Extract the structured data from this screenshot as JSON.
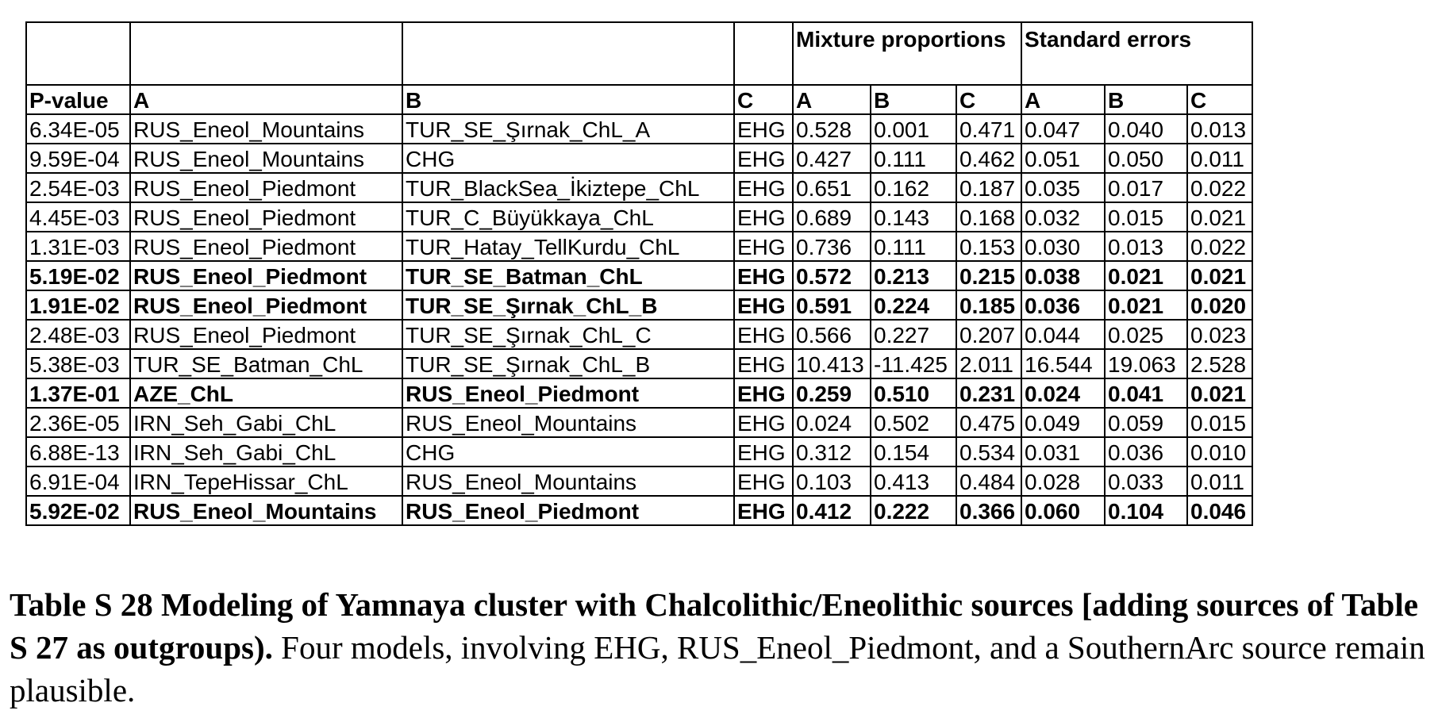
{
  "table": {
    "group_headers": {
      "mixture": "Mixture proportions",
      "standard_errors": "Standard errors"
    },
    "column_headers": [
      "P-value",
      "A",
      "B",
      "C",
      "A",
      "B",
      "C",
      "A",
      "B",
      "C"
    ],
    "rows": [
      {
        "bold": false,
        "cells": [
          "6.34E-05",
          "RUS_Eneol_Mountains",
          "TUR_SE_Şırnak_ChL_A",
          "EHG",
          "0.528",
          "0.001",
          "0.471",
          "0.047",
          "0.040",
          "0.013"
        ]
      },
      {
        "bold": false,
        "cells": [
          "9.59E-04",
          "RUS_Eneol_Mountains",
          "CHG",
          "EHG",
          "0.427",
          "0.111",
          "0.462",
          "0.051",
          "0.050",
          "0.011"
        ]
      },
      {
        "bold": false,
        "cells": [
          "2.54E-03",
          "RUS_Eneol_Piedmont",
          "TUR_BlackSea_İkiztepe_ChL",
          "EHG",
          "0.651",
          "0.162",
          "0.187",
          "0.035",
          "0.017",
          "0.022"
        ]
      },
      {
        "bold": false,
        "cells": [
          "4.45E-03",
          "RUS_Eneol_Piedmont",
          "TUR_C_Büyükkaya_ChL",
          "EHG",
          "0.689",
          "0.143",
          "0.168",
          "0.032",
          "0.015",
          "0.021"
        ]
      },
      {
        "bold": false,
        "cells": [
          "1.31E-03",
          "RUS_Eneol_Piedmont",
          "TUR_Hatay_TellKurdu_ChL",
          "EHG",
          "0.736",
          "0.111",
          "0.153",
          "0.030",
          "0.013",
          "0.022"
        ]
      },
      {
        "bold": true,
        "cells": [
          "5.19E-02",
          "RUS_Eneol_Piedmont",
          "TUR_SE_Batman_ChL",
          "EHG",
          "0.572",
          "0.213",
          "0.215",
          "0.038",
          "0.021",
          "0.021"
        ]
      },
      {
        "bold": true,
        "cells": [
          "1.91E-02",
          "RUS_Eneol_Piedmont",
          "TUR_SE_Şırnak_ChL_B",
          "EHG",
          "0.591",
          "0.224",
          "0.185",
          "0.036",
          "0.021",
          "0.020"
        ]
      },
      {
        "bold": false,
        "cells": [
          "2.48E-03",
          "RUS_Eneol_Piedmont",
          "TUR_SE_Şırnak_ChL_C",
          "EHG",
          "0.566",
          "0.227",
          "0.207",
          "0.044",
          "0.025",
          "0.023"
        ]
      },
      {
        "bold": false,
        "cells": [
          "5.38E-03",
          "TUR_SE_Batman_ChL",
          "TUR_SE_Şırnak_ChL_B",
          "EHG",
          "10.413",
          "-11.425",
          "2.011",
          "16.544",
          "19.063",
          "2.528"
        ]
      },
      {
        "bold": true,
        "cells": [
          "1.37E-01",
          "AZE_ChL",
          "RUS_Eneol_Piedmont",
          "EHG",
          "0.259",
          "0.510",
          "0.231",
          "0.024",
          "0.041",
          "0.021"
        ]
      },
      {
        "bold": false,
        "cells": [
          "2.36E-05",
          "IRN_Seh_Gabi_ChL",
          "RUS_Eneol_Mountains",
          "EHG",
          "0.024",
          "0.502",
          "0.475",
          "0.049",
          "0.059",
          "0.015"
        ]
      },
      {
        "bold": false,
        "cells": [
          "6.88E-13",
          "IRN_Seh_Gabi_ChL",
          "CHG",
          "EHG",
          "0.312",
          "0.154",
          "0.534",
          "0.031",
          "0.036",
          "0.010"
        ]
      },
      {
        "bold": false,
        "cells": [
          "6.91E-04",
          "IRN_TepeHissar_ChL",
          "RUS_Eneol_Mountains",
          "EHG",
          "0.103",
          "0.413",
          "0.484",
          "0.028",
          "0.033",
          "0.011"
        ]
      },
      {
        "bold": true,
        "cells": [
          "5.92E-02",
          "RUS_Eneol_Mountains",
          "RUS_Eneol_Piedmont",
          "EHG",
          "0.412",
          "0.222",
          "0.366",
          "0.060",
          "0.104",
          "0.046"
        ]
      }
    ]
  },
  "caption": {
    "bold_text": "Table S 28 Modeling of Yamnaya cluster with Chalcolithic/Eneolithic sources [adding sources of Table S 27 as outgroups).",
    "text": " Four models, involving EHG, RUS_Eneol_Piedmont, and a SouthernArc source remain plausible."
  }
}
